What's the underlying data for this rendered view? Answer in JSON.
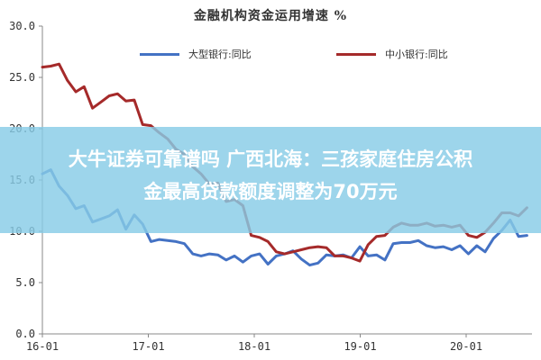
{
  "page": {
    "banner_line1": "大牛证券可靠谱吗 广西北海：三孩家庭住房公积",
    "banner_line2": "金最高贷款额度调整为70万元",
    "banner_color": "#87cce6"
  },
  "chart_data": {
    "type": "line",
    "title": "金融机构资金运用增速 %",
    "xlabel": "",
    "ylabel": "",
    "x_tick_labels": [
      "16-01",
      "17-01",
      "18-01",
      "19-01",
      "20-01"
    ],
    "y_tick_labels": [
      "0.0",
      "5.0",
      "10.0",
      "15.0",
      "20.0",
      "25.0",
      "30.0"
    ],
    "xlim": [
      0,
      58.5
    ],
    "ylim": [
      0,
      30
    ],
    "grid": false,
    "legend_position": "top",
    "series": [
      {
        "name": "大型银行:同比",
        "color": "#4472c4",
        "x": [
          0,
          1,
          2,
          3,
          4,
          5,
          6,
          7,
          8,
          9,
          10,
          11,
          12,
          13,
          14,
          15,
          16,
          17,
          18,
          19,
          20,
          21,
          22,
          23,
          24,
          25,
          26,
          27,
          28,
          29,
          30,
          31,
          32,
          33,
          34,
          35,
          36,
          37,
          38,
          39,
          40,
          41,
          42,
          43,
          44,
          45,
          46,
          47,
          48,
          49,
          50,
          51,
          52,
          53,
          54,
          55,
          56,
          57,
          58
        ],
        "values": [
          15.6,
          16.0,
          14.4,
          13.5,
          12.2,
          12.5,
          10.9,
          11.2,
          11.5,
          12.1,
          10.2,
          11.6,
          10.7,
          9.0,
          9.2,
          9.1,
          9.0,
          8.8,
          7.8,
          7.6,
          7.8,
          7.7,
          7.2,
          7.6,
          7.0,
          7.6,
          7.8,
          6.8,
          7.6,
          7.8,
          8.1,
          7.3,
          6.7,
          6.9,
          7.7,
          7.6,
          7.7,
          7.4,
          8.5,
          7.6,
          7.7,
          7.2,
          8.8,
          8.9,
          8.9,
          9.1,
          8.6,
          8.4,
          8.5,
          8.2,
          8.6,
          7.8,
          8.6,
          8.0,
          9.3,
          10.1,
          11.1,
          9.5,
          9.6
        ]
      },
      {
        "name": "中小银行:同比",
        "color": "#a52a2a",
        "x": [
          0,
          1,
          2,
          3,
          4,
          5,
          6,
          7,
          8,
          9,
          10,
          11,
          12,
          13,
          14,
          15,
          16,
          17,
          18,
          19,
          20,
          21,
          22,
          23,
          24,
          25,
          26,
          27,
          28,
          29,
          30,
          31,
          32,
          33,
          34,
          35,
          36,
          37,
          38,
          39,
          40,
          41,
          42,
          43,
          44,
          45,
          46,
          47,
          48,
          49,
          50,
          51,
          52,
          53,
          54,
          55,
          56,
          57,
          58
        ],
        "values": [
          26.0,
          26.1,
          26.3,
          24.7,
          23.6,
          24.1,
          22.0,
          22.6,
          23.2,
          23.4,
          22.7,
          22.8,
          20.4,
          20.3,
          19.6,
          19.0,
          18.0,
          17.5,
          16.3,
          15.6,
          14.6,
          14.7,
          12.9,
          13.1,
          12.5,
          9.6,
          9.4,
          9.0,
          8.0,
          7.8,
          8.0,
          8.2,
          8.4,
          8.5,
          8.4,
          7.6,
          7.6,
          7.4,
          7.1,
          8.7,
          9.5,
          9.6,
          10.4,
          10.8,
          10.6,
          10.6,
          10.8,
          10.5,
          10.6,
          10.4,
          10.6,
          9.6,
          9.4,
          9.9,
          10.8,
          11.8,
          11.8,
          11.5,
          12.3
        ]
      }
    ]
  }
}
